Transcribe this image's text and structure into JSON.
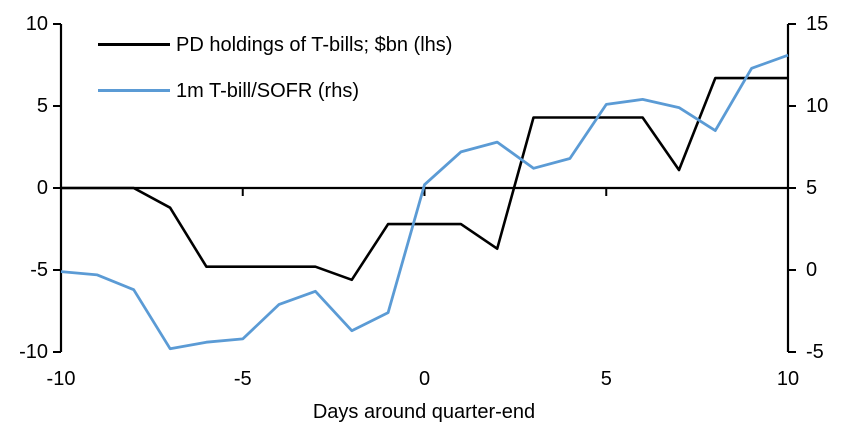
{
  "chart_data": {
    "type": "line",
    "title": "",
    "xlabel": "Days around quarter-end",
    "x": [
      -10,
      -9,
      -8,
      -7,
      -6,
      -5,
      -4,
      -3,
      -2,
      -1,
      0,
      1,
      2,
      3,
      4,
      5,
      6,
      7,
      8,
      9,
      10
    ],
    "x_ticks": [
      -10,
      -5,
      0,
      5,
      10
    ],
    "left_axis": {
      "ticks": [
        10,
        5,
        0,
        -5,
        -10
      ],
      "lim": [
        -10,
        10
      ]
    },
    "right_axis": {
      "ticks": [
        15,
        10,
        5,
        0,
        -5
      ],
      "lim": [
        -5,
        15
      ]
    },
    "grid": false,
    "legend_position": "top-left",
    "zero_line": true,
    "series": [
      {
        "name": "PD holdings of T-bills; $bn (lhs)",
        "axis": "left",
        "color": "#000000",
        "values": [
          0,
          0,
          0,
          -1.2,
          -4.8,
          -4.8,
          -4.8,
          -4.8,
          -5.6,
          -2.2,
          -2.2,
          -2.2,
          -3.7,
          4.3,
          4.3,
          4.3,
          4.3,
          1.1,
          6.7,
          6.7,
          6.7
        ]
      },
      {
        "name": "1m T-bill/SOFR (rhs)",
        "axis": "right",
        "color": "#5B9BD5",
        "values": [
          -0.1,
          -0.3,
          -1.2,
          -4.8,
          -4.4,
          -4.2,
          -2.1,
          -1.3,
          -3.7,
          -2.6,
          5.2,
          7.2,
          7.8,
          6.2,
          6.8,
          10.1,
          10.4,
          9.9,
          8.5,
          12.3,
          13.1
        ]
      }
    ]
  }
}
